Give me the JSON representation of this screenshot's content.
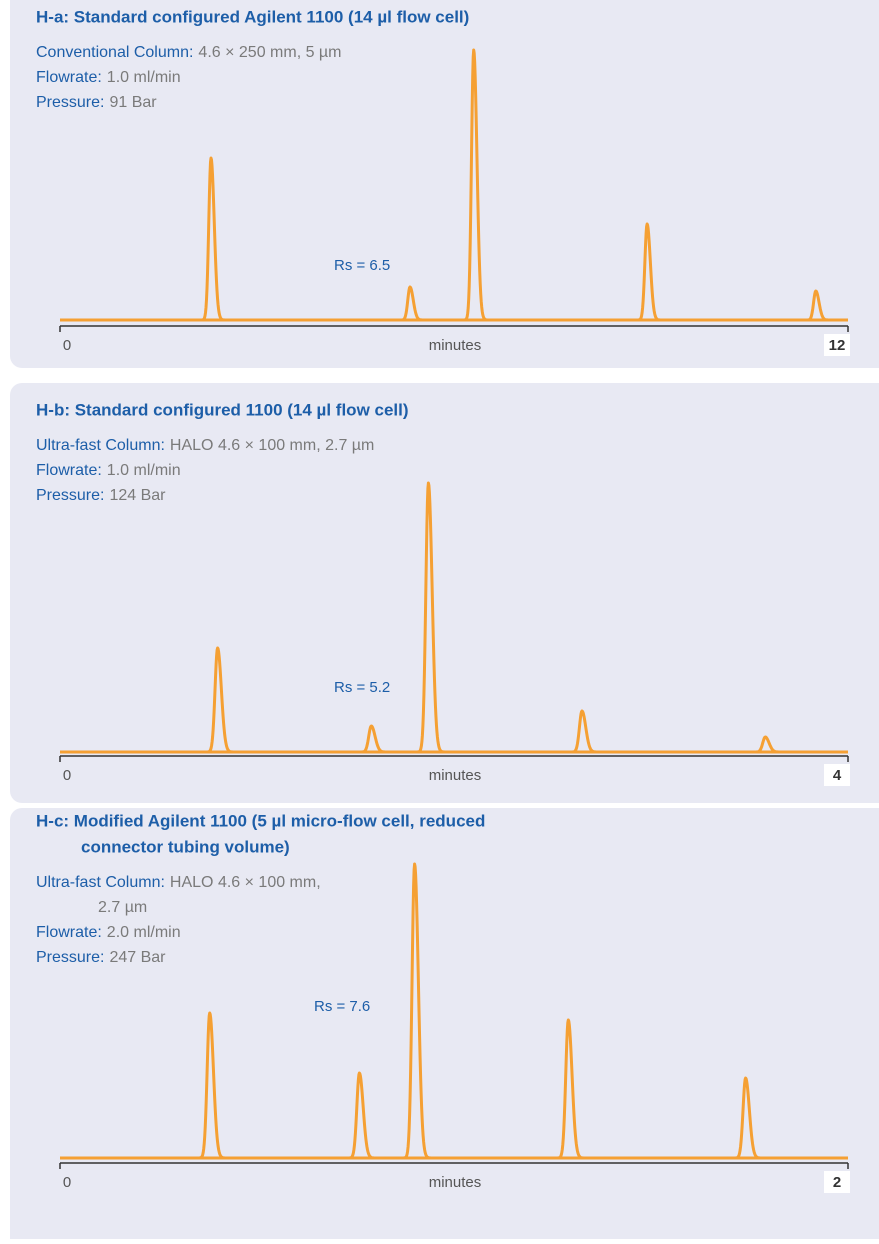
{
  "chart_data": [
    {
      "type": "line",
      "title": "H-a: Standard configured Agilent 1100 (14 µl flow cell)",
      "details": [
        {
          "label": "Conventional Column:",
          "value": "4.6 × 250 mm, 5 µm"
        },
        {
          "label": "Flowrate:",
          "value": "1.0 ml/min"
        },
        {
          "label": "Pressure:",
          "value": "91 Bar"
        }
      ],
      "annotation": "Rs = 6.5",
      "xlabel": "minutes",
      "color": "#f5a033",
      "x": [
        2.3,
        5.33,
        6.3,
        8.94,
        11.51
      ],
      "values": [
        162,
        33,
        270,
        96,
        29
      ],
      "xlim": [
        0,
        12
      ],
      "xticks": [
        0,
        12
      ],
      "ylim": [
        0,
        300
      ]
    },
    {
      "type": "line",
      "title": "H-b: Standard configured 1100 (14 µl flow cell)",
      "details": [
        {
          "label": "Ultra-fast Column:",
          "value": "HALO 4.6 × 100 mm, 2.7 µm"
        },
        {
          "label": "Flowrate:",
          "value": "1.0 ml/min"
        },
        {
          "label": "Pressure:",
          "value": "124 Bar"
        }
      ],
      "annotation": "Rs = 5.2",
      "xlabel": "minutes",
      "color": "#f5a033",
      "x": [
        0.8,
        1.58,
        1.87,
        2.65,
        3.58
      ],
      "values": [
        104,
        26,
        269,
        41,
        15
      ],
      "xlim": [
        0,
        4
      ],
      "xticks": [
        0,
        4
      ],
      "ylim": [
        0,
        300
      ]
    },
    {
      "type": "line",
      "title": [
        "H-c: Modified Agilent 1100 (5 µl micro-flow cell, reduced",
        "connector tubing volume)"
      ],
      "details": [
        {
          "label": "Ultra-fast Column:",
          "value": [
            "HALO 4.6 × 100 mm,",
            "2.7 µm"
          ]
        },
        {
          "label": "Flowrate:",
          "value": "2.0 ml/min"
        },
        {
          "label": "Pressure:",
          "value": "247 Bar"
        }
      ],
      "annotation": "Rs = 7.6",
      "xlabel": "minutes",
      "color": "#f5a033",
      "x": [
        0.38,
        0.76,
        0.9,
        1.29,
        1.74
      ],
      "values": [
        145,
        85,
        294,
        138,
        80
      ],
      "xlim": [
        0,
        2
      ],
      "xticks": [
        0,
        2
      ],
      "ylim": [
        0,
        300
      ]
    }
  ]
}
